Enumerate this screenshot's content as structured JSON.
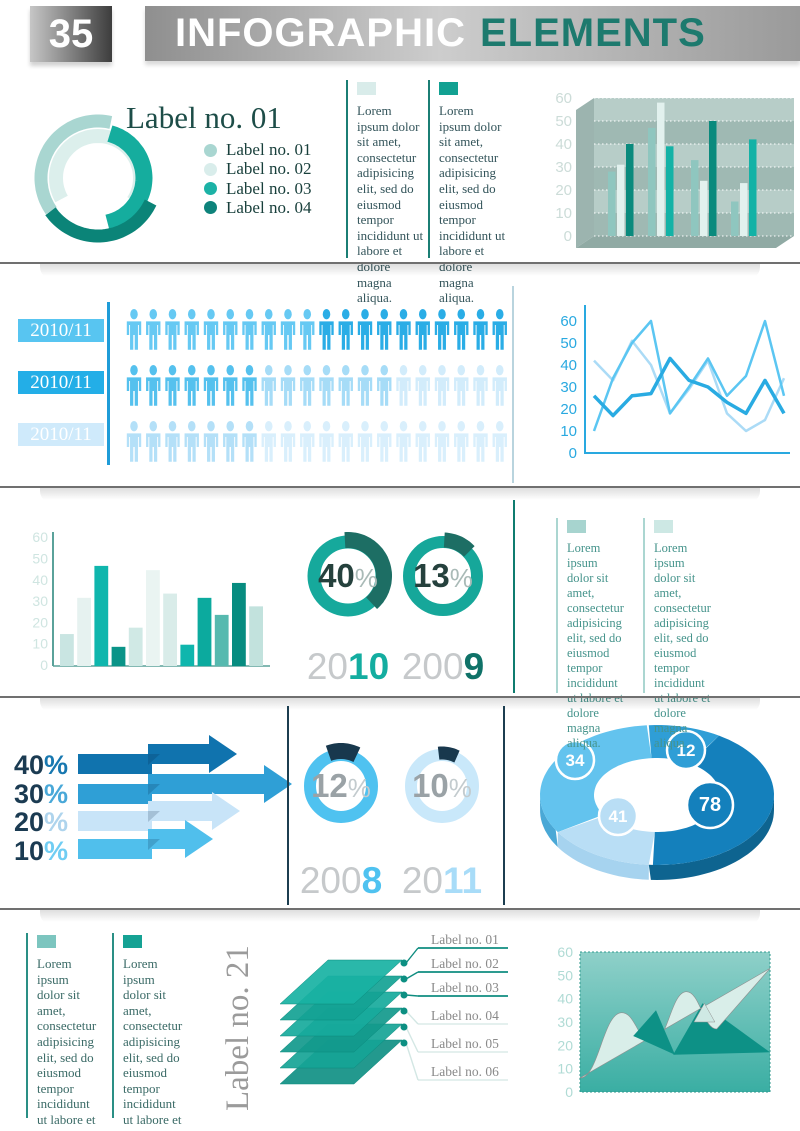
{
  "header": {
    "badge": "35",
    "title_primary": "INFOGRAPHIC",
    "title_secondary": "ELEMENTS",
    "accent": "#1d7a6e"
  },
  "lorem": "Lorem ipsum dolor sit amet, consectetur adipisicing elit, sed do eiusmod tempor incididunt ut labore et dolore magna aliqua.",
  "text_columns": [
    {
      "swatch": "#d9ecea",
      "border": "#1b7e74",
      "text_color": "#33545a"
    },
    {
      "swatch": "#12a192",
      "border": "#1b7e74",
      "text_color": "#33545a"
    },
    {
      "swatch": "#a7d4cf",
      "border": "#abd6d1",
      "text_color": "#46948c"
    },
    {
      "swatch": "#cde8e4",
      "border": "#abd6d1",
      "text_color": "#46948c"
    },
    {
      "swatch": "#7cc5bf",
      "border": "#2a8f85",
      "text_color": "#3a6a66"
    },
    {
      "swatch": "#15a294",
      "border": "#2a8f85",
      "text_color": "#3a6a66"
    }
  ],
  "chart_data": [
    {
      "id": "ring-arcs",
      "type": "pie",
      "title": "Label no. 01",
      "legend": [
        {
          "label": "Label no. 01",
          "color": "#a9d6d1"
        },
        {
          "label": "Label no. 02",
          "color": "#d9edeb"
        },
        {
          "label": "Label no. 03",
          "color": "#1cb2a6"
        },
        {
          "label": "Label no. 04",
          "color": "#0e837b"
        }
      ],
      "arcs": [
        {
          "color": "#a9d6d1",
          "r": 57,
          "w": 13,
          "a0": -125,
          "a1": 15
        },
        {
          "color": "#dcefec",
          "r": 42,
          "w": 14,
          "a0": -120,
          "a1": 125
        },
        {
          "color": "#15ad9e",
          "r": 46,
          "w": 17,
          "a0": 15,
          "a1": 170
        },
        {
          "color": "#0b8478",
          "r": 58,
          "w": 13,
          "a0": 115,
          "a1": 235
        }
      ]
    },
    {
      "id": "bar3d",
      "type": "bar",
      "ylim": [
        0,
        60
      ],
      "yticks": [
        0,
        10,
        20,
        30,
        40,
        50,
        60
      ],
      "groups": [
        [
          28,
          31,
          40
        ],
        [
          47,
          58,
          39
        ],
        [
          33,
          24,
          50
        ],
        [
          15,
          23,
          42
        ]
      ],
      "bar_colors": [
        "#8fc6bf",
        "#e2f1ee"
      ],
      "accent_colors": [
        "#0a8a7d",
        "#13b2a6",
        "#0a8a7d",
        "#13b2a6"
      ],
      "wall_bands": [
        "#b7cdc8",
        "#9fb9b3"
      ],
      "tick_color": "#ccdcd8"
    },
    {
      "id": "pictograph",
      "type": "pictograph",
      "rows": [
        {
          "label": "2010/11",
          "label_color": "#58c5f1",
          "segments": [
            {
              "count": 10,
              "color": "#66c9f3"
            },
            {
              "count": 10,
              "color": "#2aade6"
            }
          ]
        },
        {
          "label": "2010/11",
          "label_color": "#23aee7",
          "segments": [
            {
              "count": 7,
              "color": "#55c1ee"
            },
            {
              "count": 7,
              "color": "#a6dcf7"
            },
            {
              "count": 6,
              "color": "#d2ecfb"
            }
          ]
        },
        {
          "label": "2010/11",
          "label_color": "#cfeafb",
          "segments": [
            {
              "count": 7,
              "color": "#b4e0f8"
            },
            {
              "count": 13,
              "color": "#d9effc"
            }
          ]
        }
      ]
    },
    {
      "id": "line",
      "type": "line",
      "ylim": [
        0,
        60
      ],
      "yticks": [
        0,
        10,
        20,
        30,
        40,
        50,
        60
      ],
      "axis_color": "#29a9e0",
      "series": [
        {
          "color": "#abdbf6",
          "width": 2.5,
          "values": [
            42,
            33,
            51,
            40,
            18,
            29,
            42,
            18,
            10,
            15,
            34
          ]
        },
        {
          "color": "#5bc6f2",
          "width": 2.5,
          "values": [
            10,
            34,
            50,
            60,
            18,
            30,
            43,
            26,
            35,
            60,
            26
          ]
        },
        {
          "color": "#29abe2",
          "width": 3.5,
          "values": [
            26,
            17,
            26,
            27,
            43,
            33,
            30,
            23,
            18,
            33,
            18
          ]
        }
      ]
    },
    {
      "id": "bars",
      "type": "bar",
      "ylim": [
        0,
        60
      ],
      "yticks": [
        0,
        10,
        20,
        30,
        40,
        50,
        60
      ],
      "axis_color": "#5aa29a",
      "tick_color": "#cfe5e1",
      "values": [
        15,
        32,
        47,
        9,
        18,
        45,
        34,
        10,
        32,
        24,
        39,
        28
      ],
      "colors": [
        "#c9e5e2",
        "#e6f2f0",
        "#0fb6ad",
        "#0a9488",
        "#d0e9e5",
        "#eaf4f2",
        "#d9ece9",
        "#0fb6ad",
        "#0caa9e",
        "#56b9af",
        "#078c80",
        "#c2e2dd"
      ]
    },
    {
      "id": "donuts-teal",
      "type": "pie",
      "items": [
        {
          "pct": "40",
          "pct_suffix": "%",
          "suffix_color": "#a9bab7",
          "num_color": "#25413d",
          "ring": "#16a99c",
          "arc": "#1d6e64",
          "arc_a0": -5,
          "arc_a1": 139,
          "year_light": "20",
          "year_bold": "10",
          "year_bold_color": "#13ada0"
        },
        {
          "pct": "13",
          "pct_suffix": "%",
          "suffix_color": "#a9bab7",
          "num_color": "#25413d",
          "ring": "#16a79a",
          "arc": "#1d6e64",
          "arc_a0": 2,
          "arc_a1": 49,
          "year_light": "200",
          "year_bold": "9",
          "year_bold_color": "#0f7268"
        }
      ]
    },
    {
      "id": "arrows",
      "type": "bar",
      "rows": [
        {
          "label": "40",
          "suffix": "%",
          "suffix_color": "#1878b0",
          "color": "#1073ae",
          "tip": 237
        },
        {
          "label": "30",
          "suffix": "%",
          "suffix_color": "#49a8d8",
          "color": "#2f9fd6",
          "tip": 292
        },
        {
          "label": "20",
          "suffix": "%",
          "suffix_color": "#aed4ed",
          "color": "#c8e4f8",
          "tip": 240
        },
        {
          "label": "10",
          "suffix": "%",
          "suffix_color": "#6fcdf3",
          "color": "#50bfec",
          "tip": 213
        }
      ]
    },
    {
      "id": "donuts-blue",
      "type": "pie",
      "items": [
        {
          "pct": "12",
          "pct_suffix": "%",
          "suffix_color": "#c3cbce",
          "num_color": "#9aa2a6",
          "ring": "#4fc2f0",
          "arc": "#18384d",
          "arc_a0": -21,
          "arc_a1": 27,
          "year_light": "200",
          "year_bold": "8",
          "year_bold_color": "#4fc2f0"
        },
        {
          "pct": "10",
          "pct_suffix": "%",
          "suffix_color": "#c3cbce",
          "num_color": "#9aa2a6",
          "ring": "#c9e8fa",
          "arc": "#18384d",
          "arc_a0": -6,
          "arc_a1": 29,
          "year_light": "20",
          "year_bold": "11",
          "year_bold_color": "#a8dcf8"
        }
      ]
    },
    {
      "id": "pie3d",
      "type": "pie",
      "segments": [
        {
          "value": "34",
          "color": "#63c3ee",
          "a0": 95,
          "a1": 212,
          "badge": [
            47,
            47
          ],
          "badge_r": 19
        },
        {
          "value": "12",
          "color": "#2f9ed6",
          "a0": 58,
          "a1": 95,
          "badge": [
            158,
            37
          ],
          "badge_r": 19
        },
        {
          "value": "41",
          "color": "#b9def5",
          "a0": 212,
          "a1": 268,
          "badge": [
            90,
            103
          ],
          "badge_r": 19
        },
        {
          "value": "78",
          "color": "#1480bc",
          "a0": 268,
          "a1": 418,
          "badge": [
            182,
            92
          ],
          "badge_r": 23
        }
      ],
      "side_colors": {
        "far_left": "#4aa8d6",
        "left": "#a6d3ef",
        "right": "#0e6490"
      }
    },
    {
      "id": "layers",
      "type": "table",
      "side_label": "Label no. 21",
      "sheet_colors": [
        "#18b2a3",
        "#13a294",
        "#17aa9c",
        "#12998c",
        "#16a496",
        "#109084"
      ],
      "dot_color": "#0c8f82",
      "items": [
        {
          "label": "Label no. 01",
          "line_color": "#0f8d80",
          "strong": true
        },
        {
          "label": "Label no. 02",
          "line_color": "#0f8d80",
          "strong": true
        },
        {
          "label": "Label no. 03",
          "line_color": "#0f8d80",
          "strong": true
        },
        {
          "label": "Label no. 04",
          "line_color": "#d3e7e4",
          "strong": false
        },
        {
          "label": "Label no. 05",
          "line_color": "#d3e7e4",
          "strong": false
        },
        {
          "label": "Label no. 06",
          "line_color": "#d3e7e4",
          "strong": false
        }
      ]
    },
    {
      "id": "area",
      "type": "area",
      "ylim": [
        0,
        60
      ],
      "yticks": [
        0,
        10,
        20,
        30,
        40,
        50,
        60
      ],
      "tick_color": "#b0dbd5",
      "bg_top": "#8fd0c9",
      "bg_bottom": "#3aaea3",
      "light": "#d9eee9",
      "dark": "#0d9186",
      "small_light": "#cfe9e4",
      "wave": [
        [
          0,
          6
        ],
        [
          0.22,
          34
        ],
        [
          0.38,
          21
        ],
        [
          0.56,
          43
        ],
        [
          0.72,
          27
        ],
        [
          1,
          53
        ]
      ],
      "dark_tri1": [
        [
          0.28,
          24
        ],
        [
          0.4,
          35
        ],
        [
          0.5,
          16
        ]
      ],
      "dark_tri2": [
        [
          0.49,
          16
        ],
        [
          0.645,
          38
        ],
        [
          1,
          17
        ]
      ],
      "small_tri": [
        [
          0.6,
          30
        ],
        [
          0.655,
          38
        ],
        [
          0.71,
          30
        ]
      ]
    }
  ]
}
